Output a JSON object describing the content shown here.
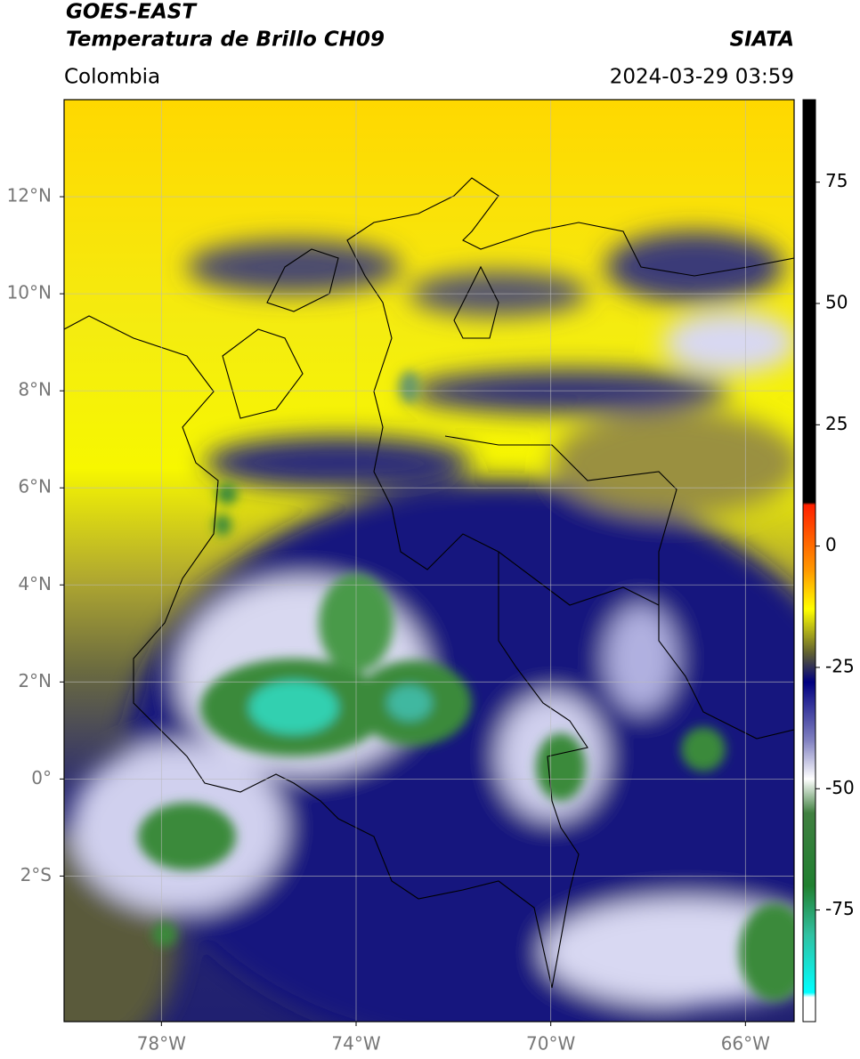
{
  "header": {
    "satellite": "GOES-EAST",
    "product": "Temperatura de Brillo CH09",
    "source": "SIATA",
    "region": "Colombia",
    "datetime": "2024-03-29 03:59"
  },
  "map": {
    "xlim": [
      -80,
      -65
    ],
    "ylim": [
      -5,
      14
    ],
    "xticks": [
      {
        "value": -78,
        "label": "78°W"
      },
      {
        "value": -74,
        "label": "74°W"
      },
      {
        "value": -70,
        "label": "70°W"
      },
      {
        "value": -66,
        "label": "66°W"
      }
    ],
    "yticks": [
      {
        "value": 12,
        "label": "12°N"
      },
      {
        "value": 10,
        "label": "10°N"
      },
      {
        "value": 8,
        "label": "8°N"
      },
      {
        "value": 6,
        "label": "6°N"
      },
      {
        "value": 4,
        "label": "4°N"
      },
      {
        "value": 2,
        "label": "2°N"
      },
      {
        "value": 0,
        "label": "0°"
      },
      {
        "value": -2,
        "label": "2°S"
      }
    ],
    "grid": true
  },
  "colorbar": {
    "lim": [
      -98,
      92
    ],
    "ticks": [
      75,
      50,
      25,
      0,
      -25,
      -50,
      -75
    ],
    "stops": [
      {
        "value": 92,
        "color": "#000000"
      },
      {
        "value": 9,
        "color": "#000000"
      },
      {
        "value": 8.5,
        "color": "#ff2000"
      },
      {
        "value": -5,
        "color": "#ff9900"
      },
      {
        "value": -13,
        "color": "#ffff00"
      },
      {
        "value": -22,
        "color": "#606030"
      },
      {
        "value": -28,
        "color": "#000080"
      },
      {
        "value": -40,
        "color": "#8080c0"
      },
      {
        "value": -48,
        "color": "#ffffff"
      },
      {
        "value": -55,
        "color": "#408040"
      },
      {
        "value": -70,
        "color": "#208030"
      },
      {
        "value": -80,
        "color": "#30c0a0"
      },
      {
        "value": -92,
        "color": "#00ffff"
      },
      {
        "value": -93,
        "color": "#ffffff"
      },
      {
        "value": -98,
        "color": "#ffffff"
      }
    ]
  }
}
